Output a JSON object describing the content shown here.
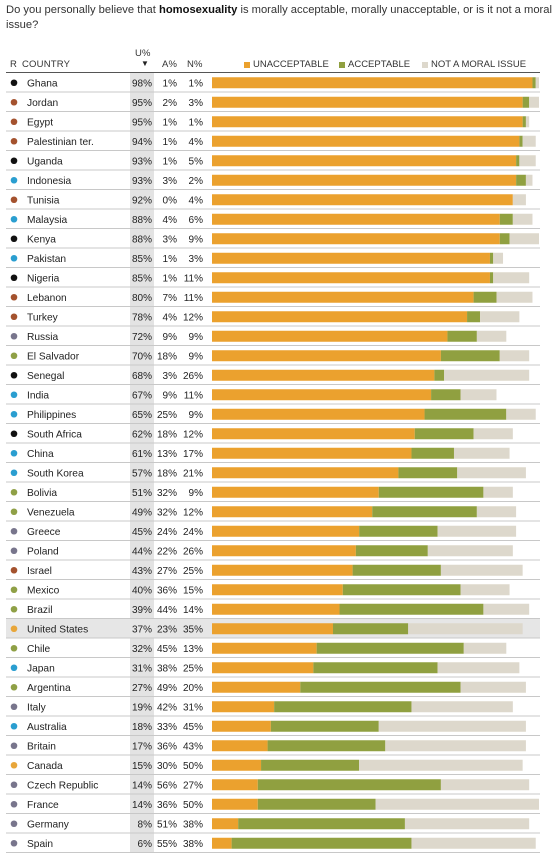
{
  "question": {
    "before": "Do you personally believe that ",
    "bold": "homosexuality",
    "after": " is morally acceptable, morally unacceptable, or is it not a moral issue?"
  },
  "headers": {
    "r": "R",
    "country": "COUNTRY",
    "u": "U%",
    "a": "A%",
    "n": "N%"
  },
  "legend": {
    "unacceptable": "UNACCEPTABLE",
    "acceptable": "ACCEPTABLE",
    "not_moral": "NOT A MORAL ISSUE"
  },
  "colors": {
    "unacceptable": "#eba12e",
    "acceptable": "#90a040",
    "not_moral": "#ddd8cc",
    "highlight_row": "#e6e6e6",
    "u_column_bg": "#e3e3e3",
    "region_black": "#111111",
    "region_brown": "#a4522e",
    "region_blue": "#2a9ed0",
    "region_gray": "#78758c",
    "region_olive": "#8fa046",
    "region_gold": "#e8a63a"
  },
  "chart_data": {
    "type": "bar",
    "stacked": true,
    "orientation": "horizontal",
    "categories": [
      "Ghana",
      "Jordan",
      "Egypt",
      "Palestinian ter.",
      "Uganda",
      "Indonesia",
      "Tunisia",
      "Malaysia",
      "Kenya",
      "Pakistan",
      "Nigeria",
      "Lebanon",
      "Turkey",
      "Russia",
      "El Salvador",
      "Senegal",
      "India",
      "Philippines",
      "South Africa",
      "China",
      "South Korea",
      "Bolivia",
      "Venezuela",
      "Greece",
      "Poland",
      "Israel",
      "Mexico",
      "Brazil",
      "United States",
      "Chile",
      "Japan",
      "Argentina",
      "Italy",
      "Australia",
      "Britain",
      "Canada",
      "Czech Republic",
      "France",
      "Germany",
      "Spain"
    ],
    "regions": [
      "black",
      "brown",
      "brown",
      "brown",
      "black",
      "blue",
      "brown",
      "blue",
      "black",
      "blue",
      "black",
      "brown",
      "brown",
      "gray",
      "olive",
      "black",
      "blue",
      "blue",
      "black",
      "blue",
      "blue",
      "olive",
      "olive",
      "gray",
      "gray",
      "brown",
      "olive",
      "olive",
      "gold",
      "olive",
      "blue",
      "olive",
      "gray",
      "blue",
      "gray",
      "gold",
      "gray",
      "gray",
      "gray",
      "gray"
    ],
    "series": [
      {
        "name": "UNACCEPTABLE",
        "values": [
          98,
          95,
          95,
          94,
          93,
          93,
          92,
          88,
          88,
          85,
          85,
          80,
          78,
          72,
          70,
          68,
          67,
          65,
          62,
          61,
          57,
          51,
          49,
          45,
          44,
          43,
          40,
          39,
          37,
          32,
          31,
          27,
          19,
          18,
          17,
          15,
          14,
          14,
          8,
          6
        ]
      },
      {
        "name": "ACCEPTABLE",
        "values": [
          1,
          2,
          1,
          1,
          1,
          3,
          0,
          4,
          3,
          1,
          1,
          7,
          4,
          9,
          18,
          3,
          9,
          25,
          18,
          13,
          18,
          32,
          32,
          24,
          22,
          27,
          36,
          44,
          23,
          45,
          38,
          49,
          42,
          33,
          36,
          30,
          56,
          36,
          51,
          55
        ]
      },
      {
        "name": "NOT A MORAL ISSUE",
        "values": [
          1,
          3,
          1,
          4,
          5,
          2,
          4,
          6,
          9,
          3,
          11,
          11,
          12,
          9,
          9,
          26,
          11,
          9,
          12,
          17,
          21,
          9,
          12,
          24,
          26,
          25,
          15,
          14,
          35,
          13,
          25,
          20,
          31,
          45,
          43,
          50,
          27,
          50,
          38,
          38
        ]
      }
    ],
    "highlight": "United States",
    "xlim": [
      0,
      100
    ]
  }
}
